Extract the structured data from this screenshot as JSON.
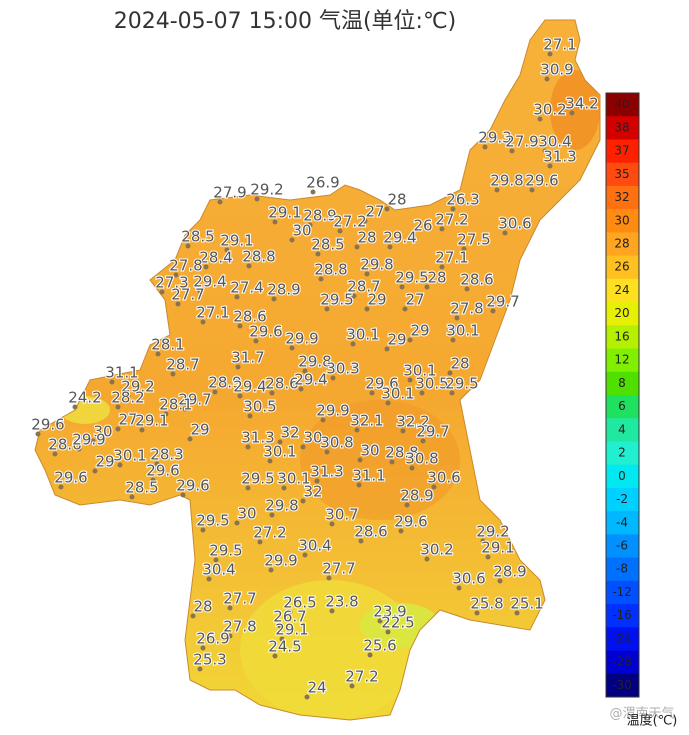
{
  "title": "2024-05-07 15:00 气温(单位:℃)",
  "stations": [
    27.1,
    30.9,
    30.2,
    34.2,
    29.3,
    27.9,
    30.4,
    31.3,
    29.8,
    29.6,
    27.9,
    29.2,
    26.9,
    28,
    26.3,
    29.1,
    28.9,
    27.2,
    27,
    26,
    27.2,
    30.6,
    28.5,
    29.1,
    30,
    28.5,
    28,
    29.4,
    27.5,
    28.4,
    28.8,
    27.1,
    27.8,
    28.8,
    29.8,
    29.5,
    28,
    28.6,
    27.3,
    29.4,
    27.4,
    28.9,
    28.7,
    27.7,
    29.5,
    29,
    27,
    27.8,
    29.7,
    27.1,
    28.6,
    29.6,
    29.9,
    30.1,
    29,
    29,
    30.1,
    28.1,
    31.1,
    28.7,
    31.7,
    29.8,
    30.3,
    28,
    29.2,
    29.7,
    28.9,
    29.4,
    28.6,
    29.4,
    29.6,
    30.1,
    30.5,
    29.5,
    24.2,
    28.2,
    28.1,
    30.1,
    30.5,
    29.9,
    27,
    29.1,
    29,
    32.1,
    32.2,
    29.6,
    30,
    29.7,
    28.6,
    29.9,
    31.3,
    32,
    30,
    30.8,
    30.1,
    30,
    28.8,
    30.8,
    30.1,
    28.3,
    29,
    31.1,
    30.6,
    29.6,
    29.6,
    28.5,
    31.3,
    29.5,
    30.1,
    29.6,
    32,
    28.9,
    29.8,
    30,
    30.7,
    29.5,
    27.2,
    28.6,
    29.6,
    29.2,
    29.1,
    30.4,
    29.5,
    29.9,
    30.2,
    27.7,
    28.9,
    30.4,
    30.6,
    28,
    27.7,
    26.5,
    23.8,
    23.9,
    25.8,
    25.1,
    27.8,
    26.7,
    22.5,
    29.1,
    26.9,
    24.5,
    25.6,
    25.3,
    27.2,
    24
  ],
  "legend": {
    "title": "温度(℃)",
    "ticks": [
      40,
      38,
      37,
      35,
      32,
      30,
      28,
      26,
      24,
      20,
      16,
      12,
      8,
      6,
      4,
      2,
      0,
      -2,
      -4,
      -6,
      -8,
      -12,
      -16,
      -24,
      -28,
      -30
    ],
    "colors": [
      "#8b0000",
      "#d40000",
      "#ff2000",
      "#ff4a10",
      "#ff7010",
      "#ff8c10",
      "#ffa520",
      "#ffc020",
      "#ffe020",
      "#e6f000",
      "#b4f000",
      "#80f000",
      "#50e000",
      "#20e060",
      "#20e8a0",
      "#20f0d0",
      "#00e8f0",
      "#00d0ff",
      "#00b8ff",
      "#0090ff",
      "#0070ff",
      "#0050ff",
      "#0030ff",
      "#0010f0",
      "#0000d0",
      "#000080"
    ]
  },
  "watermark": "@渭南天气"
}
